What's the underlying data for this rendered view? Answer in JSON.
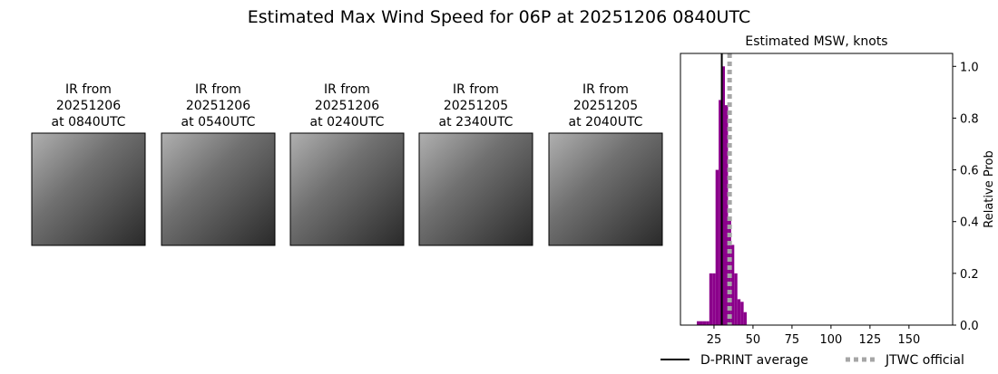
{
  "title": "Estimated Max Wind Speed for 06P at 20251206 0840UTC",
  "panels": [
    {
      "lines": [
        "IR from",
        "20251206",
        "at 0840UTC"
      ]
    },
    {
      "lines": [
        "IR from",
        "20251206",
        "at 0540UTC"
      ]
    },
    {
      "lines": [
        "IR from",
        "20251206",
        "at 0240UTC"
      ]
    },
    {
      "lines": [
        "IR from",
        "20251205",
        "at 2340UTC"
      ]
    },
    {
      "lines": [
        "IR from",
        "20251205",
        "at 2040UTC"
      ]
    }
  ],
  "chart_data": {
    "type": "histogram",
    "title": "Estimated MSW, knots",
    "y_label": "Relative Prob",
    "color": "#8b008b",
    "bins": [
      14,
      16,
      18,
      20,
      22,
      24,
      26,
      28,
      30,
      32,
      34,
      36,
      38,
      40,
      42,
      44,
      46
    ],
    "values": [
      0.015,
      0.015,
      0.015,
      0.015,
      0.2,
      0.2,
      0.6,
      0.87,
      1.0,
      0.85,
      0.42,
      0.31,
      0.2,
      0.1,
      0.09,
      0.05
    ],
    "xlim": [
      3.5,
      178
    ],
    "xticks": [
      25,
      50,
      75,
      100,
      125,
      150
    ],
    "ylim": [
      0,
      1.05
    ],
    "yticks": [
      {
        "value": 0,
        "label": "0.0"
      },
      0.2,
      0.4,
      0.6,
      0.8,
      {
        "value": 1,
        "label": "1.0"
      }
    ],
    "lines": [
      {
        "name": "D-PRINT average",
        "value": 30,
        "color": "#000000",
        "style": "solid"
      },
      {
        "name": "JTWC official",
        "value": 35,
        "color": "#a6a6a6",
        "style": "dotted"
      }
    ]
  }
}
